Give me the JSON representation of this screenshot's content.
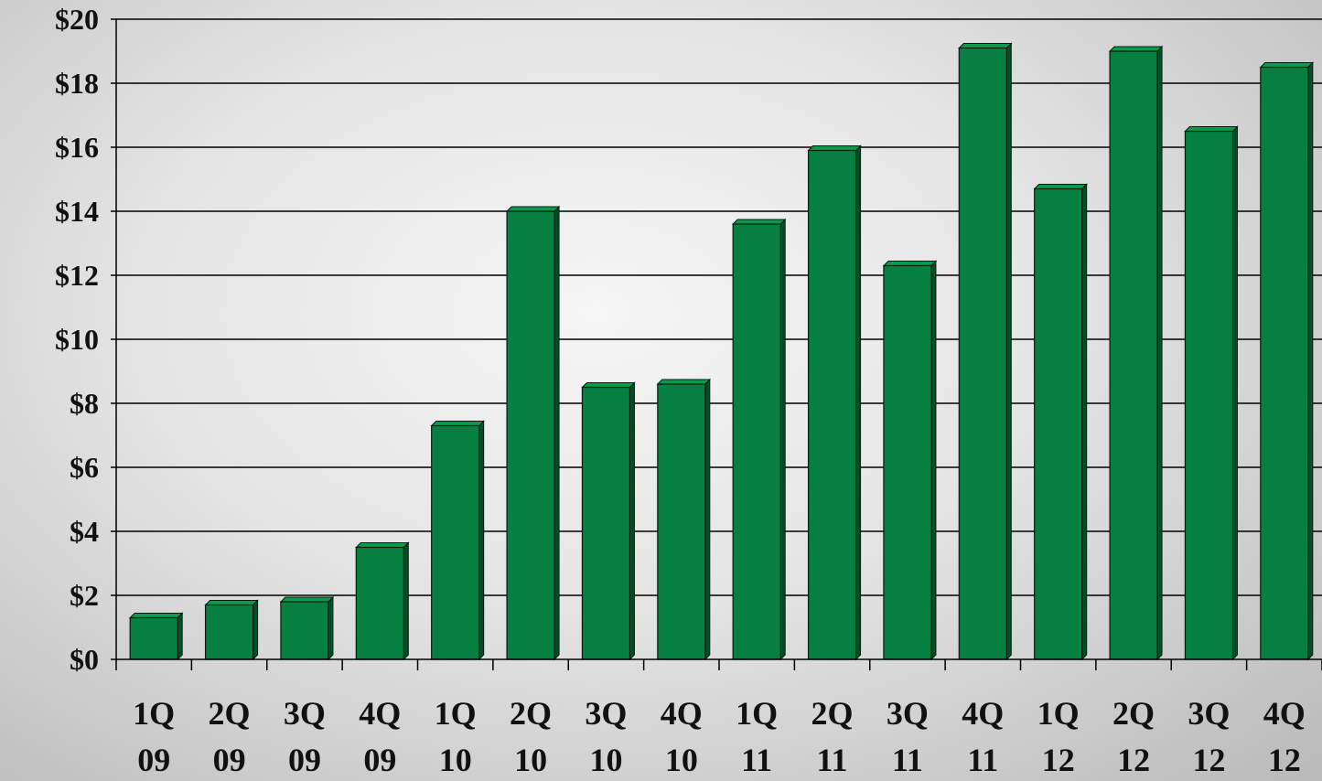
{
  "chart_data": {
    "type": "bar",
    "title": "",
    "xlabel": "",
    "ylabel": "",
    "categories": [
      [
        "1Q",
        "09"
      ],
      [
        "2Q",
        "09"
      ],
      [
        "3Q",
        "09"
      ],
      [
        "4Q",
        "09"
      ],
      [
        "1Q",
        "10"
      ],
      [
        "2Q",
        "10"
      ],
      [
        "3Q",
        "10"
      ],
      [
        "4Q",
        "10"
      ],
      [
        "1Q",
        "11"
      ],
      [
        "2Q",
        "11"
      ],
      [
        "3Q",
        "11"
      ],
      [
        "4Q",
        "11"
      ],
      [
        "1Q",
        "12"
      ],
      [
        "2Q",
        "12"
      ],
      [
        "3Q",
        "12"
      ],
      [
        "4Q",
        "12"
      ]
    ],
    "values": [
      1.3,
      1.7,
      1.8,
      3.5,
      7.3,
      14.0,
      8.5,
      8.6,
      13.6,
      15.9,
      12.3,
      19.1,
      14.7,
      19.0,
      16.5,
      18.5
    ],
    "ylim": [
      0,
      20
    ],
    "yticks": [
      "$0",
      "$2",
      "$4",
      "$6",
      "$8",
      "$10",
      "$12",
      "$14",
      "$16",
      "$18",
      "$20"
    ],
    "grid": true,
    "legend": "none",
    "colors": {
      "bar_front": "#058040",
      "bar_side": "#024f26",
      "bar_top": "#0a9a4e",
      "bar_outline": "#0a1a10",
      "gridline": "#000000"
    }
  }
}
